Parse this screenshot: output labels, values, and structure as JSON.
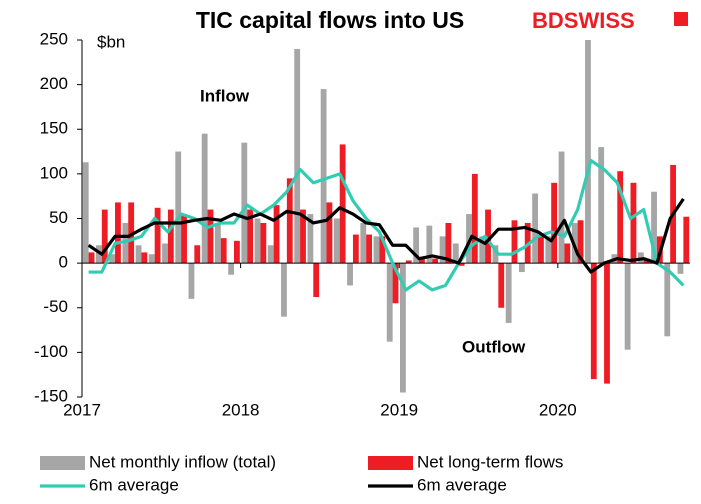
{
  "chart_data": {
    "type": "bar",
    "title": "TIC capital flows into US",
    "logo": "BDSWISS",
    "y_label": "$bn",
    "annotations": [
      "Inflow",
      "Outflow"
    ],
    "categories": [
      "2017",
      null,
      null,
      null,
      null,
      null,
      null,
      null,
      null,
      null,
      null,
      null,
      "2018",
      null,
      null,
      null,
      null,
      null,
      null,
      null,
      null,
      null,
      null,
      null,
      "2019",
      null,
      null,
      null,
      null,
      null,
      null,
      null,
      null,
      null,
      null,
      null,
      "2020",
      null,
      null,
      null,
      null,
      null,
      null,
      null,
      null,
      null
    ],
    "ylim": [
      -150,
      250
    ],
    "yticks": [
      -150,
      -100,
      -50,
      0,
      50,
      100,
      150,
      200,
      250
    ],
    "legend": "bottom",
    "series": [
      {
        "name": "Net monthly inflow (total)",
        "type": "bar",
        "color": "#a6a6a6",
        "values": [
          113,
          20,
          10,
          45,
          20,
          10,
          22,
          125,
          -40,
          145,
          45,
          -13,
          135,
          50,
          20,
          -60,
          240,
          55,
          195,
          50,
          -25,
          45,
          30,
          -88,
          -145,
          40,
          42,
          30,
          22,
          55,
          30,
          20,
          -67,
          -10,
          78,
          30,
          125,
          45,
          250,
          130,
          10,
          -97,
          12,
          80,
          -82,
          -12
        ]
      },
      {
        "name": "Net long-term flows",
        "type": "bar",
        "color": "#ee1c24",
        "values": [
          12,
          60,
          68,
          68,
          12,
          62,
          60,
          55,
          20,
          60,
          28,
          25,
          60,
          45,
          65,
          95,
          60,
          -38,
          68,
          133,
          32,
          32,
          30,
          -45,
          3,
          7,
          5,
          45,
          -3,
          100,
          60,
          -50,
          48,
          45,
          30,
          90,
          22,
          48,
          -130,
          -135,
          103,
          90,
          5,
          30,
          110,
          52
        ]
      },
      {
        "name": "6m average",
        "type": "line",
        "color": "#33ccb3",
        "values": [
          -10,
          -10,
          22,
          25,
          30,
          50,
          35,
          55,
          50,
          40,
          45,
          45,
          65,
          55,
          65,
          80,
          105,
          90,
          95,
          100,
          70,
          50,
          35,
          0,
          -30,
          -20,
          -30,
          -25,
          0,
          20,
          30,
          10,
          10,
          18,
          30,
          35,
          30,
          60,
          115,
          105,
          90,
          50,
          60,
          0,
          -10,
          -25
        ]
      },
      {
        "name": "6m average",
        "type": "line",
        "color": "#000000",
        "values": [
          20,
          10,
          30,
          30,
          38,
          45,
          45,
          45,
          48,
          50,
          48,
          55,
          50,
          55,
          48,
          58,
          55,
          45,
          48,
          62,
          55,
          45,
          43,
          20,
          20,
          5,
          8,
          5,
          0,
          30,
          22,
          38,
          38,
          40,
          35,
          25,
          48,
          10,
          -10,
          0,
          5,
          3,
          5,
          0,
          50,
          72
        ]
      }
    ]
  }
}
